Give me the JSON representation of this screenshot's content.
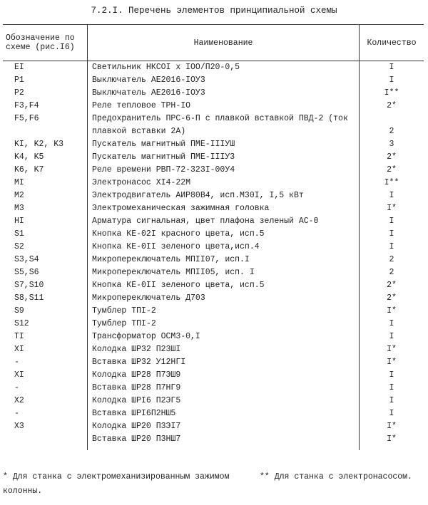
{
  "title": "7.2.I. Перечень элементов принципиальной схемы",
  "table": {
    "headers": [
      "Обозначение по схеме (рис.I6)",
      "Наименование",
      "Количество"
    ],
    "rows": [
      [
        "EI",
        "Светильник НКСОI x IOO/П20-0,5",
        "I"
      ],
      [
        "P1",
        "Выключатель АЕ2016-IОУ3",
        "I"
      ],
      [
        "P2",
        "Выключатель АЕ2016-IОУ3",
        "I**"
      ],
      [
        "F3,F4",
        "Реле тепловое ТРН-IO",
        "2*"
      ],
      [
        "F5,F6",
        "Предохранитель ПРС-6-П с плавкой вставкой ПВД-2 (ток плавкой вставки 2А)",
        "2"
      ],
      [
        "KI, K2, K3",
        "Пускатель магнитный ПМЕ-IIIУШ",
        "3"
      ],
      [
        "K4, K5",
        "Пускатель магнитный ПМЕ-IIIУ3",
        "2*"
      ],
      [
        "K6, K7",
        "Реле времени РВП-72-323I-00У4",
        "2*"
      ],
      [
        "MI",
        "Электронасос ХI4-22М",
        "I**"
      ],
      [
        "M2",
        "Электродвигатель АИР80В4, исп.М30I, I,5 кВт",
        "I"
      ],
      [
        "M3",
        "Электромеханическая зажимная головка",
        "I*"
      ],
      [
        "HI",
        "Арматура сигнальная, цвет плафона зеленый АС-0",
        "I"
      ],
      [
        "S1",
        "Кнопка КЕ-02I красного цвета, исп.5",
        "I"
      ],
      [
        "S2",
        "Кнопка КЕ-0II зеленого цвета,исп.4",
        "I"
      ],
      [
        "S3,S4",
        "Микропереключатель МПII07, исп.I",
        "2"
      ],
      [
        "S5,S6",
        "Микропереключатель МПII05, исп. I",
        "2"
      ],
      [
        "S7,S10",
        "Кнопка КЕ-0II зеленого цвета, исп.5",
        "2*"
      ],
      [
        "S8,S11",
        "Микропереключатель Д703",
        "2*"
      ],
      [
        "S9",
        "Тумблер ТПI-2",
        "I*"
      ],
      [
        "S12",
        "Тумблер ТПI-2",
        "I"
      ],
      [
        "TI",
        "Трансформатор ОСМ3-0,I",
        "I"
      ],
      [
        "XI",
        "Колодка ШР32 П23ШI",
        "I*"
      ],
      [
        "-",
        "Вставка ШР32 У12НГI",
        "I*"
      ],
      [
        "XI",
        "Колодка ШР28 П7ЭШ9",
        "I"
      ],
      [
        "-",
        "Вставка ШР28 П7НГ9",
        "I"
      ],
      [
        "X2",
        "Колодка ШРI6 П2ЭГ5",
        "I"
      ],
      [
        "-",
        "Вставка ШРI6П2НШ5",
        "I"
      ],
      [
        "X3",
        "Колодка ШР20 П3ЭI7",
        "I*"
      ],
      [
        null,
        "Вставка ШР20 П3НШ7",
        "I*"
      ]
    ]
  },
  "footnotes": [
    {
      "mark": "*",
      "text": "Для станка с электромеханизированным зажимом колонны."
    },
    {
      "mark": "**",
      "text": "Для станка с электронасосом."
    }
  ]
}
